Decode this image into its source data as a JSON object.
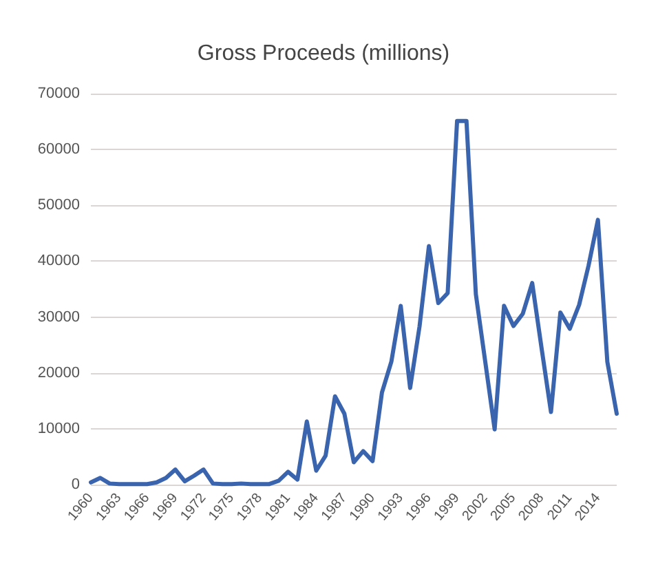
{
  "chart_data": {
    "type": "line",
    "title": "Gross Proceeds (millions)",
    "categories": [
      "1960",
      null,
      null,
      "1963",
      null,
      null,
      "1966",
      null,
      null,
      "1969",
      null,
      null,
      "1972",
      null,
      null,
      "1975",
      null,
      null,
      "1978",
      null,
      null,
      "1981",
      null,
      null,
      "1984",
      null,
      null,
      "1987",
      null,
      null,
      "1990",
      null,
      null,
      "1993",
      null,
      null,
      "1996",
      null,
      null,
      "1999",
      null,
      null,
      "2002",
      null,
      null,
      "2005",
      null,
      null,
      "2008",
      null,
      null,
      "2011",
      null,
      null,
      "2014",
      null,
      null
    ],
    "series": [
      {
        "color": "#3a64ad",
        "values": [
          400,
          1200,
          200,
          100,
          100,
          100,
          100,
          400,
          1200,
          2700,
          600,
          1600,
          2700,
          200,
          100,
          100,
          200,
          100,
          100,
          100,
          700,
          2300,
          900,
          11300,
          2500,
          5200,
          15800,
          12700,
          4000,
          6000,
          4200,
          16500,
          22000,
          32000,
          17300,
          28300,
          42700,
          32500,
          34300,
          65100,
          65100,
          34100,
          22000,
          9900,
          32000,
          28400,
          30600,
          36100,
          24400,
          13000,
          30800,
          27900,
          32200,
          39200,
          47400,
          22000,
          12700
        ]
      }
    ],
    "ylim": [
      0,
      70000
    ],
    "yticks": [
      0,
      10000,
      20000,
      30000,
      40000,
      50000,
      60000,
      70000
    ],
    "grid": "y",
    "marker": "none",
    "line_style": "solid"
  }
}
